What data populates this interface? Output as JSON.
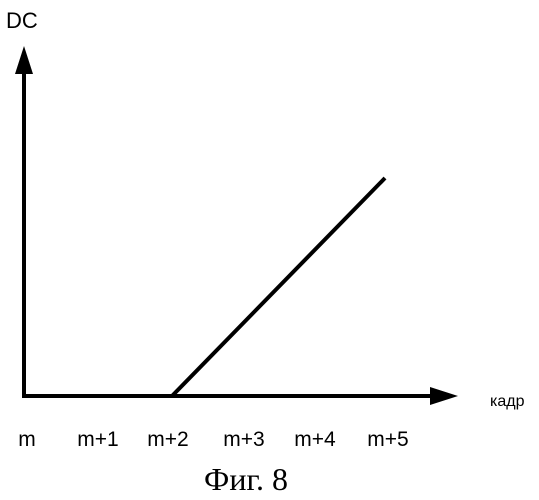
{
  "chart_data": {
    "type": "line",
    "ylabel": "DC",
    "xlabel": "кадр",
    "categories": [
      "m",
      "m+1",
      "m+2",
      "m+3",
      "m+4",
      "m+5"
    ],
    "series": [
      {
        "points": [
          {
            "x": "m",
            "y": 0
          },
          {
            "x": "m+2",
            "y": 0
          },
          {
            "x": "m+5",
            "y": 1
          }
        ]
      }
    ],
    "grid": false
  },
  "caption": "Фиг. 8"
}
